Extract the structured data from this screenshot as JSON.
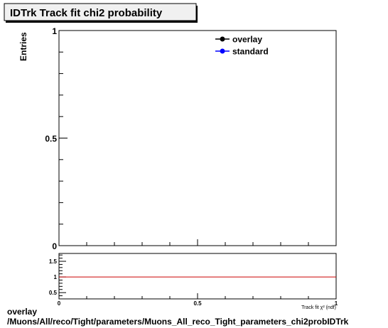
{
  "chart_data": [
    {
      "type": "line",
      "title": "IDTrk Track fit chi2 probability",
      "ylabel": "Entries",
      "xlim": [
        0,
        1
      ],
      "ylim": [
        0,
        1
      ],
      "yticks": [
        "0",
        "0.5",
        "1"
      ],
      "legend_position": "top-right",
      "series": [
        {
          "name": "overlay",
          "color": "#000000",
          "marker": "circle",
          "x": [],
          "y": []
        },
        {
          "name": "standard",
          "color": "#0000ff",
          "marker": "circle",
          "x": [],
          "y": []
        }
      ]
    },
    {
      "type": "line",
      "xlabel": "Track fit χ² (ndf)",
      "xlim": [
        0,
        1
      ],
      "ylim": [
        0.3,
        1.75
      ],
      "xticks": [
        "0",
        "0.5",
        "1"
      ],
      "yticks": [
        "0.5",
        "1",
        "1.5"
      ],
      "reference_line": {
        "y": 1,
        "color": "#cc0000"
      }
    }
  ],
  "footer": {
    "line1": "overlay",
    "line2": "/Muons/All/reco/Tight/parameters/Muons_All_reco_Tight_parameters_chi2probIDTrk"
  }
}
